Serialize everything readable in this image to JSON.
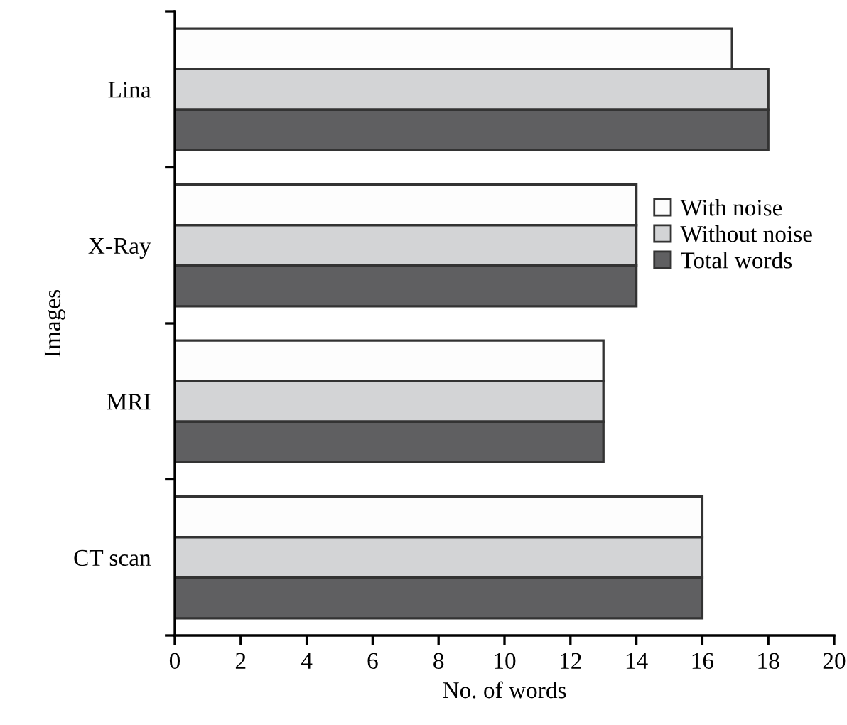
{
  "chart_data": {
    "type": "bar",
    "orientation": "horizontal",
    "xlabel": "No. of words",
    "ylabel": "Images",
    "categories": [
      "Lina",
      "X-Ray",
      "MRI",
      "CT scan"
    ],
    "series": [
      {
        "name": "With noise",
        "color": "#fdfdfd",
        "values": [
          16.9,
          14,
          13,
          16
        ]
      },
      {
        "name": "Without noise",
        "color": "#d3d4d6",
        "values": [
          18,
          14,
          13,
          16
        ]
      },
      {
        "name": "Total words",
        "color": "#5f5f61",
        "values": [
          18,
          14,
          13,
          16
        ]
      }
    ],
    "xlim": [
      0,
      20
    ],
    "xticks": [
      0,
      2,
      4,
      6,
      8,
      10,
      12,
      14,
      16,
      18,
      20
    ],
    "grid": false,
    "legend": "right"
  }
}
